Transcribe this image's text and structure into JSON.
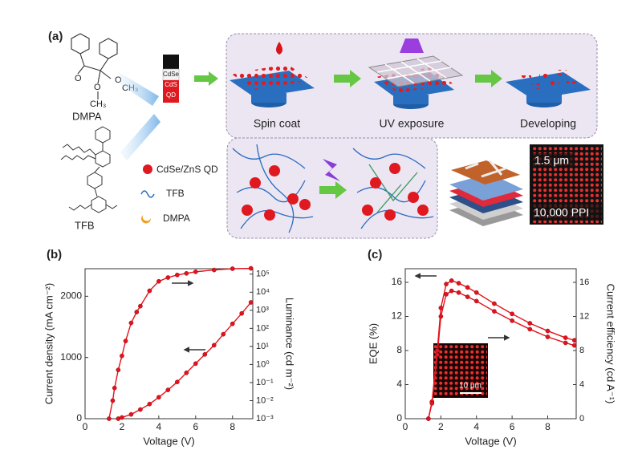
{
  "panel_a": {
    "label": "(a)",
    "dmpa": "DMPA",
    "dmpa_atoms": [
      "O",
      "O",
      "CH₃",
      "O",
      "CH₃"
    ],
    "tfb": "TFB",
    "vial": [
      "CdSe",
      "CdS",
      "QD"
    ],
    "steps": [
      "Spin coat",
      "UV exposure",
      "Developing"
    ],
    "legend": [
      "CdSe/ZnS QD",
      "TFB",
      "DMPA"
    ],
    "micrograph": [
      "1.5 μm",
      "10,000 PPI"
    ]
  },
  "chart_data": [
    {
      "type": "line",
      "panel_label": "(b)",
      "x_label": "Voltage (V)",
      "y_label": "Current density (mA cm⁻²)",
      "y2_label": "Luminance (cd m⁻²)",
      "xlim": [
        0,
        9.1
      ],
      "xticks": [
        0,
        2,
        4,
        6,
        8
      ],
      "ylim": [
        0,
        2450
      ],
      "yticks": [
        0,
        1000,
        2000
      ],
      "y2lim": [
        0.001,
        200000
      ],
      "y2_log": true,
      "y2ticks": [
        {
          "value": 0.001,
          "label": "10⁻³"
        },
        {
          "value": 0.01,
          "label": "10⁻²"
        },
        {
          "value": 0.1,
          "label": "10⁻¹"
        },
        {
          "value": 1,
          "label": "10⁰"
        },
        {
          "value": 10,
          "label": "10¹"
        },
        {
          "value": 100,
          "label": "10²"
        },
        {
          "value": 1000,
          "label": "10³"
        },
        {
          "value": 10000,
          "label": "10⁴"
        },
        {
          "value": 100000,
          "label": "10⁵"
        }
      ],
      "series": [
        {
          "name": "Current density",
          "color": "#e3121c",
          "x": [
            1.8,
            2,
            2.5,
            3,
            3.5,
            4,
            4.5,
            5,
            5.5,
            6,
            6.5,
            7,
            7.5,
            8,
            8.5,
            9
          ],
          "values": [
            0,
            20,
            70,
            150,
            240,
            350,
            470,
            600,
            750,
            900,
            1050,
            1200,
            1380,
            1550,
            1720,
            1900
          ]
        },
        {
          "name": "Luminance",
          "color": "#e3121c",
          "axis": "y2",
          "x": [
            1.3,
            1.5,
            1.6,
            1.8,
            2,
            2.2,
            2.5,
            2.8,
            3,
            3.5,
            4,
            4.5,
            5,
            5.5,
            6,
            7,
            8,
            9
          ],
          "values": [
            0.001,
            0.01,
            0.05,
            0.5,
            3,
            20,
            200,
            800,
            1700,
            12000,
            40000,
            65000,
            90000,
            110000,
            135000,
            170000,
            200000,
            210000
          ]
        }
      ]
    },
    {
      "type": "line",
      "panel_label": "(c)",
      "x_label": "Voltage (V)",
      "y_label": "EQE (%)",
      "y2_label": "Current efficiency (cd A⁻¹)",
      "xlim": [
        0,
        9.6
      ],
      "xticks": [
        0,
        2,
        4,
        6,
        8
      ],
      "ylim": [
        0,
        17.6
      ],
      "yticks": [
        0,
        4,
        8,
        12,
        16
      ],
      "y2lim": [
        0,
        17.6
      ],
      "y2ticks": [
        0,
        4,
        8,
        12,
        16
      ],
      "inset_label": "10 μm",
      "series": [
        {
          "name": "EQE",
          "color": "#e3121c",
          "x": [
            1.3,
            1.5,
            1.8,
            2,
            2.3,
            2.6,
            3,
            3.5,
            4,
            5,
            6,
            7,
            8,
            9,
            9.5
          ],
          "values": [
            0,
            2,
            8,
            13,
            15.8,
            16.2,
            15.9,
            15.4,
            14.8,
            13.5,
            12.3,
            11.2,
            10.3,
            9.5,
            9.2
          ]
        },
        {
          "name": "Current efficiency",
          "color": "#e3121c",
          "axis": "y2",
          "x": [
            1.3,
            1.5,
            1.8,
            2,
            2.3,
            2.6,
            3,
            3.5,
            4,
            5,
            6,
            7,
            8,
            9,
            9.5
          ],
          "values": [
            0,
            1.8,
            7.5,
            12,
            14.6,
            15,
            14.8,
            14.3,
            13.8,
            12.6,
            11.5,
            10.5,
            9.6,
            8.9,
            8.6
          ]
        }
      ]
    }
  ]
}
